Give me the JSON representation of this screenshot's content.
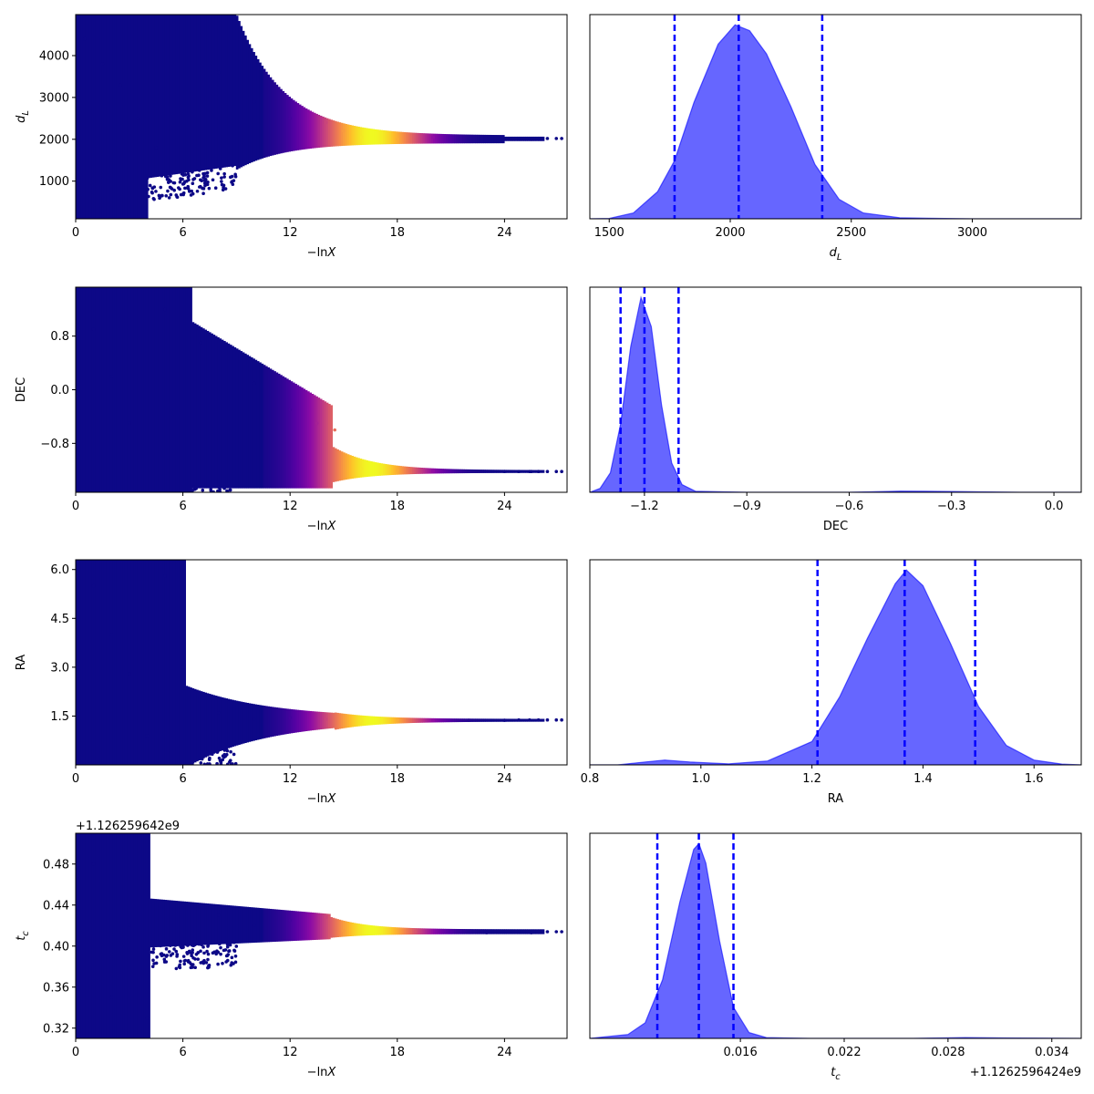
{
  "chart_data": [
    {
      "type": "scatter",
      "xlabel": "−lnX",
      "ylabel": "d_L",
      "xlim": [
        0,
        27.5
      ],
      "ylim": [
        100,
        4980
      ],
      "xticks": [
        0,
        6,
        12,
        18,
        24
      ],
      "yticks": [
        1000,
        2000,
        3000,
        4000
      ],
      "colormap": "plasma",
      "points": [
        [
          0.5,
          4400
        ],
        [
          1.5,
          3800
        ],
        [
          2.5,
          3300
        ],
        [
          3.5,
          2500
        ],
        [
          4.5,
          1800
        ],
        [
          6,
          1200
        ],
        [
          8,
          3600
        ],
        [
          10,
          2900
        ],
        [
          12,
          2500
        ],
        [
          14,
          2400
        ],
        [
          15,
          2200
        ],
        [
          16,
          2050
        ],
        [
          18,
          2000
        ],
        [
          20,
          2050
        ],
        [
          22,
          2020
        ],
        [
          24,
          2000
        ],
        [
          25.5,
          2000
        ],
        [
          27.2,
          2020
        ]
      ]
    },
    {
      "type": "area",
      "xlabel": "d_L",
      "ylabel": "",
      "xlim": [
        1420,
        3450
      ],
      "xticks": [
        1500,
        2000,
        2500,
        3000
      ],
      "fill_color": "#6666ff",
      "line_color": "#0000ff",
      "quantiles": [
        1770,
        2035,
        2380
      ],
      "curve": [
        [
          1420,
          0.0
        ],
        [
          1500,
          0.002
        ],
        [
          1600,
          0.03
        ],
        [
          1700,
          0.14
        ],
        [
          1770,
          0.3
        ],
        [
          1850,
          0.6
        ],
        [
          1950,
          0.9
        ],
        [
          2020,
          1.0
        ],
        [
          2080,
          0.97
        ],
        [
          2150,
          0.85
        ],
        [
          2250,
          0.58
        ],
        [
          2350,
          0.28
        ],
        [
          2450,
          0.1
        ],
        [
          2550,
          0.03
        ],
        [
          2700,
          0.005
        ],
        [
          3000,
          0.0
        ],
        [
          3450,
          0.0
        ]
      ]
    },
    {
      "type": "scatter",
      "xlabel": "−lnX",
      "ylabel": "DEC",
      "xlim": [
        0,
        27.5
      ],
      "ylim": [
        -1.53,
        1.53
      ],
      "xticks": [
        0,
        6,
        12,
        18,
        24
      ],
      "yticks": [
        -0.8,
        0.0,
        0.8
      ],
      "colormap": "plasma",
      "points": [
        [
          1,
          0.9
        ],
        [
          2,
          0.2
        ],
        [
          3,
          -0.5
        ],
        [
          5,
          1.2
        ],
        [
          7,
          0.7
        ],
        [
          10,
          0.1
        ],
        [
          12,
          -0.3
        ],
        [
          13.5,
          -0.5
        ],
        [
          14.5,
          -0.6
        ],
        [
          16,
          -1.18
        ],
        [
          18,
          -1.2
        ],
        [
          20,
          -1.21
        ],
        [
          22,
          -1.22
        ],
        [
          24,
          -1.22
        ],
        [
          25.5,
          -1.22
        ],
        [
          27.2,
          -1.22
        ]
      ]
    },
    {
      "type": "area",
      "xlabel": "DEC",
      "ylabel": "",
      "xlim": [
        -1.36,
        0.08
      ],
      "xticks": [
        -1.2,
        -0.9,
        -0.6,
        -0.3,
        0.0
      ],
      "fill_color": "#6666ff",
      "line_color": "#0000ff",
      "quantiles": [
        -1.27,
        -1.2,
        -1.1
      ],
      "curve": [
        [
          -1.36,
          0.0
        ],
        [
          -1.33,
          0.02
        ],
        [
          -1.3,
          0.1
        ],
        [
          -1.27,
          0.35
        ],
        [
          -1.24,
          0.75
        ],
        [
          -1.21,
          1.0
        ],
        [
          -1.18,
          0.85
        ],
        [
          -1.15,
          0.45
        ],
        [
          -1.12,
          0.15
        ],
        [
          -1.09,
          0.04
        ],
        [
          -1.05,
          0.005
        ],
        [
          -0.9,
          0.0
        ],
        [
          -0.6,
          0.0
        ],
        [
          -0.45,
          0.006
        ],
        [
          -0.3,
          0.004
        ],
        [
          -0.1,
          0.0
        ],
        [
          0.08,
          0.0
        ]
      ]
    },
    {
      "type": "scatter",
      "xlabel": "−lnX",
      "ylabel": "RA",
      "xlim": [
        0,
        27.5
      ],
      "ylim": [
        0.0,
        6.3
      ],
      "xticks": [
        0,
        6,
        12,
        18,
        24
      ],
      "yticks": [
        1.5,
        3.0,
        4.5,
        6.0
      ],
      "colormap": "plasma",
      "points": [
        [
          1,
          5.5
        ],
        [
          2,
          4.0
        ],
        [
          3,
          2.8
        ],
        [
          4,
          0.9
        ],
        [
          5,
          5.8
        ],
        [
          6,
          3.0
        ],
        [
          8,
          1.6
        ],
        [
          10,
          1.4
        ],
        [
          12,
          1.45
        ],
        [
          14,
          1.4
        ],
        [
          16,
          1.35
        ],
        [
          18,
          1.38
        ],
        [
          20,
          1.37
        ],
        [
          22,
          1.37
        ],
        [
          24,
          1.37
        ],
        [
          27.2,
          1.38
        ]
      ]
    },
    {
      "type": "area",
      "xlabel": "RA",
      "ylabel": "",
      "xlim": [
        0.8,
        1.685
      ],
      "xticks": [
        0.8,
        1.0,
        1.2,
        1.4,
        1.6
      ],
      "fill_color": "#6666ff",
      "line_color": "#0000ff",
      "quantiles": [
        1.21,
        1.367,
        1.494
      ],
      "curve": [
        [
          0.8,
          0.0
        ],
        [
          0.85,
          0.0
        ],
        [
          0.9,
          0.015
        ],
        [
          0.935,
          0.025
        ],
        [
          0.98,
          0.015
        ],
        [
          1.05,
          0.005
        ],
        [
          1.12,
          0.02
        ],
        [
          1.2,
          0.12
        ],
        [
          1.25,
          0.35
        ],
        [
          1.3,
          0.65
        ],
        [
          1.35,
          0.93
        ],
        [
          1.37,
          1.0
        ],
        [
          1.4,
          0.92
        ],
        [
          1.45,
          0.62
        ],
        [
          1.5,
          0.3
        ],
        [
          1.55,
          0.1
        ],
        [
          1.6,
          0.025
        ],
        [
          1.65,
          0.004
        ],
        [
          1.685,
          0.0
        ]
      ]
    },
    {
      "type": "scatter",
      "xlabel": "−lnX",
      "ylabel": "t_c",
      "offset_text": "+1.126259642e9",
      "xlim": [
        0,
        27.5
      ],
      "ylim": [
        0.31,
        0.51
      ],
      "xticks": [
        0,
        6,
        12,
        18,
        24
      ],
      "yticks": [
        0.32,
        0.36,
        0.4,
        0.44,
        0.48
      ],
      "colormap": "plasma",
      "points": [
        [
          1,
          0.48
        ],
        [
          2,
          0.35
        ],
        [
          3,
          0.42
        ],
        [
          4,
          0.33
        ],
        [
          6,
          0.44
        ],
        [
          8,
          0.43
        ],
        [
          10,
          0.42
        ],
        [
          12,
          0.425
        ],
        [
          14,
          0.428
        ],
        [
          15,
          0.415
        ],
        [
          17,
          0.414
        ],
        [
          19,
          0.414
        ],
        [
          21,
          0.414
        ],
        [
          23,
          0.413
        ],
        [
          25.5,
          0.413
        ],
        [
          27.2,
          0.414
        ]
      ]
    },
    {
      "type": "area",
      "xlabel": "t_c",
      "ylabel": "",
      "offset_text": "+1.1262596424e9",
      "xlim": [
        0.0073,
        0.0357
      ],
      "xticks": [
        0.016,
        0.022,
        0.028,
        0.034
      ],
      "fill_color": "#6666ff",
      "line_color": "#0000ff",
      "quantiles": [
        0.0112,
        0.0136,
        0.0156
      ],
      "curve": [
        [
          0.0073,
          0.0
        ],
        [
          0.0095,
          0.02
        ],
        [
          0.0105,
          0.08
        ],
        [
          0.0115,
          0.3
        ],
        [
          0.0125,
          0.7
        ],
        [
          0.0133,
          0.97
        ],
        [
          0.0136,
          1.0
        ],
        [
          0.014,
          0.9
        ],
        [
          0.0148,
          0.5
        ],
        [
          0.0156,
          0.16
        ],
        [
          0.0165,
          0.03
        ],
        [
          0.0175,
          0.004
        ],
        [
          0.02,
          0.0
        ],
        [
          0.026,
          0.0
        ],
        [
          0.029,
          0.004
        ],
        [
          0.032,
          0.002
        ],
        [
          0.0357,
          0.0
        ]
      ]
    }
  ]
}
